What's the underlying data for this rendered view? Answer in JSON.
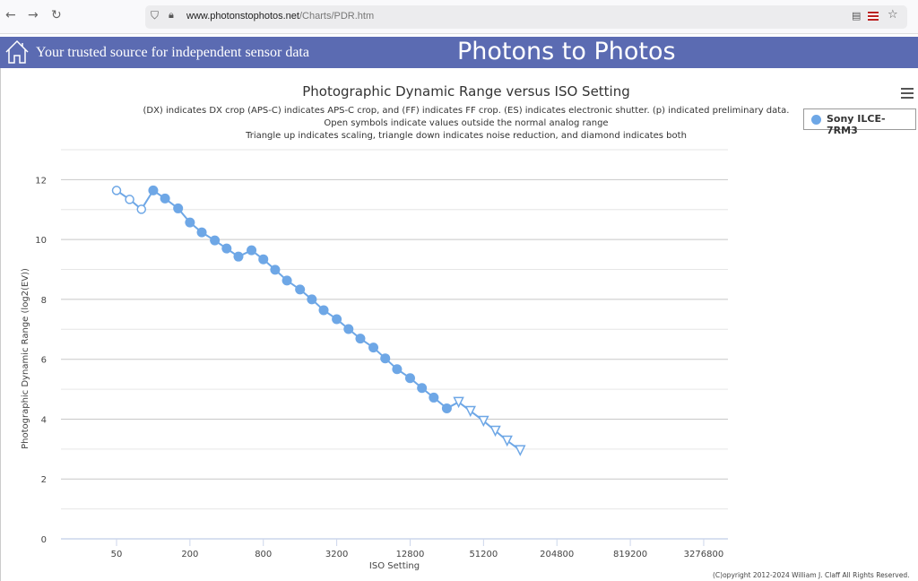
{
  "browser": {
    "url_domain": "www.photonstophotos.net",
    "url_path": "/Charts/PDR.htm"
  },
  "header": {
    "tagline": "Your trusted source for independent sensor data",
    "brand": "Photons to Photos"
  },
  "chart_data": {
    "type": "line",
    "title": "Photographic Dynamic Range versus ISO Setting",
    "subtitles": [
      "(DX) indicates DX crop (APS-C) indicates APS-C crop, and (FF) indicates FF crop. (ES) indicates electronic shutter. (p) indicated preliminary data.",
      "Open symbols indicate values outside the normal analog range",
      "Triangle up indicates scaling, triangle down indicates noise reduction, and diamond indicates both"
    ],
    "xlabel": "ISO Setting",
    "ylabel": "Photographic Dynamic Range (log2(EV))",
    "x_scale": "log",
    "xlim": [
      17.5,
      5180000
    ],
    "ylim": [
      0,
      13
    ],
    "x_ticks": [
      "50",
      "200",
      "800",
      "3200",
      "12800",
      "51200",
      "204800",
      "819200",
      "3276800"
    ],
    "y_ticks": [
      "0",
      "2",
      "4",
      "6",
      "8",
      "10",
      "12"
    ],
    "grid": true,
    "legend_position": "top-right",
    "series": [
      {
        "name": "Sony ILCE-7RM3",
        "color": "#6ea7e6",
        "x": [
          50,
          64,
          80,
          100,
          125,
          160,
          200,
          250,
          320,
          400,
          500,
          640,
          800,
          1000,
          1250,
          1600,
          2000,
          2500,
          3200,
          4000,
          5000,
          6400,
          8000,
          10000,
          12800,
          16000,
          20000,
          25600,
          32000,
          40000,
          51200,
          64000,
          80000,
          102400
        ],
        "y": [
          11.64,
          11.34,
          11.01,
          11.64,
          11.37,
          11.04,
          10.57,
          10.24,
          9.97,
          9.7,
          9.43,
          9.64,
          9.34,
          8.99,
          8.63,
          8.33,
          8.0,
          7.64,
          7.34,
          7.01,
          6.69,
          6.39,
          6.03,
          5.67,
          5.37,
          5.04,
          4.72,
          4.36,
          4.57,
          4.27,
          3.94,
          3.61,
          3.28,
          2.96
        ],
        "markers": [
          "open-circle",
          "open-circle",
          "open-circle",
          "circle",
          "circle",
          "circle",
          "circle",
          "circle",
          "circle",
          "circle",
          "circle",
          "circle",
          "circle",
          "circle",
          "circle",
          "circle",
          "circle",
          "circle",
          "circle",
          "circle",
          "circle",
          "circle",
          "circle",
          "circle",
          "circle",
          "circle",
          "circle",
          "circle",
          "open-triangle-down",
          "open-triangle-down",
          "open-triangle-down",
          "open-triangle-down",
          "open-triangle-down",
          "open-triangle-down"
        ]
      }
    ]
  },
  "footer": {
    "copyright": "(C)opyright 2012-2024 William J. Claff All Rights Reserved."
  }
}
